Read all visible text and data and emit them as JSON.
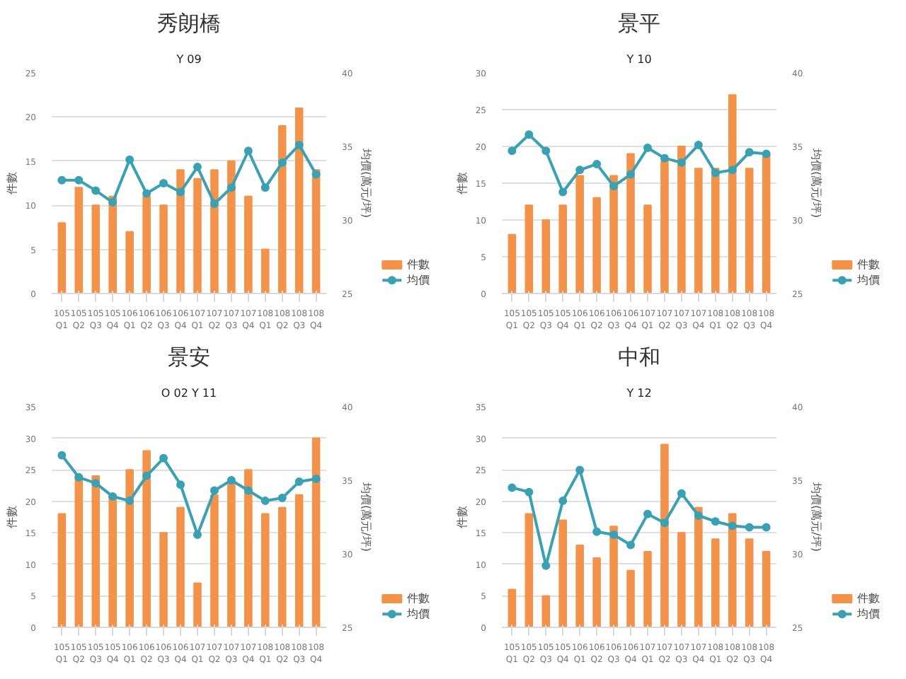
{
  "chart_data": [
    {
      "type": "bar",
      "title": "秀朗橋",
      "subtitle": "Y 09",
      "categories": [
        "105\nQ1",
        "105\nQ2",
        "105\nQ3",
        "105\nQ4",
        "106\nQ1",
        "106\nQ2",
        "106\nQ3",
        "106\nQ4",
        "107\nQ1",
        "107\nQ2",
        "107\nQ3",
        "107\nQ4",
        "108\nQ1",
        "108\nQ2",
        "108\nQ3",
        "108\nQ4"
      ],
      "ylabel": "件數",
      "y2label": "均價(萬元/坪)",
      "ylim": [
        0,
        25
      ],
      "yticks": [
        0,
        5,
        10,
        15,
        20,
        25
      ],
      "y2lim": [
        25,
        40
      ],
      "y2ticks": [
        25,
        30,
        35,
        40
      ],
      "grid": "y",
      "legend": "bottom right",
      "marker": "circle",
      "series": [
        {
          "name": "件數",
          "color": "#f4924a",
          "values": [
            8,
            12,
            10,
            11,
            7,
            11,
            10,
            14,
            13,
            14,
            15,
            11,
            5,
            19,
            21,
            14
          ]
        },
        {
          "name": "均價",
          "type": "line",
          "axis": "y2",
          "color": "#3aa1b4",
          "values": [
            32.7,
            32.7,
            32.0,
            31.2,
            34.1,
            31.8,
            32.5,
            31.9,
            33.6,
            31.1,
            32.2,
            34.7,
            32.2,
            33.9,
            35.1,
            33.1
          ]
        }
      ]
    },
    {
      "type": "bar",
      "title": "景平",
      "subtitle": "Y 10",
      "categories": [
        "105\nQ1",
        "105\nQ2",
        "105\nQ3",
        "105\nQ4",
        "106\nQ1",
        "106\nQ2",
        "106\nQ3",
        "106\nQ4",
        "107\nQ1",
        "107\nQ2",
        "107\nQ3",
        "107\nQ4",
        "108\nQ1",
        "108\nQ2",
        "108\nQ3",
        "108\nQ4"
      ],
      "ylabel": "件數",
      "y2label": "均價(萬元/坪)",
      "ylim": [
        0,
        30
      ],
      "yticks": [
        0,
        5,
        10,
        15,
        20,
        25,
        30
      ],
      "y2lim": [
        25,
        40
      ],
      "y2ticks": [
        25,
        30,
        35,
        40
      ],
      "grid": "y",
      "legend": "bottom right",
      "marker": "circle",
      "series": [
        {
          "name": "件數",
          "color": "#f4924a",
          "values": [
            8,
            12,
            10,
            12,
            16,
            13,
            16,
            19,
            12,
            18,
            20,
            17,
            17,
            27,
            17,
            19
          ]
        },
        {
          "name": "均價",
          "type": "line",
          "axis": "y2",
          "color": "#3aa1b4",
          "values": [
            34.7,
            35.8,
            34.7,
            31.9,
            33.4,
            33.8,
            32.3,
            33.1,
            34.9,
            34.2,
            33.9,
            35.1,
            33.2,
            33.4,
            34.6,
            34.5
          ]
        }
      ]
    },
    {
      "type": "bar",
      "title": "景安",
      "subtitle": "O 02 Y 11",
      "categories": [
        "105\nQ1",
        "105\nQ2",
        "105\nQ3",
        "105\nQ4",
        "106\nQ1",
        "106\nQ2",
        "106\nQ3",
        "106\nQ4",
        "107\nQ1",
        "107\nQ2",
        "107\nQ3",
        "107\nQ4",
        "108\nQ1",
        "108\nQ2",
        "108\nQ3",
        "108\nQ4"
      ],
      "ylabel": "件數",
      "y2label": "均價(萬元/坪)",
      "ylim": [
        0,
        35
      ],
      "yticks": [
        0,
        5,
        10,
        15,
        20,
        25,
        30,
        35
      ],
      "y2lim": [
        25,
        40
      ],
      "y2ticks": [
        25,
        30,
        35,
        40
      ],
      "grid": "y",
      "legend": "bottom right",
      "marker": "circle",
      "series": [
        {
          "name": "件數",
          "color": "#f4924a",
          "values": [
            18,
            24,
            24,
            21,
            25,
            28,
            15,
            19,
            7,
            21,
            23,
            25,
            18,
            19,
            21,
            30
          ]
        },
        {
          "name": "均價",
          "type": "line",
          "axis": "y2",
          "color": "#3aa1b4",
          "values": [
            36.7,
            35.2,
            34.8,
            33.9,
            33.6,
            35.3,
            36.5,
            34.7,
            31.3,
            34.3,
            35.0,
            34.3,
            33.6,
            33.8,
            34.9,
            35.1
          ]
        }
      ]
    },
    {
      "type": "bar",
      "title": "中和",
      "subtitle": "Y 12",
      "categories": [
        "105\nQ1",
        "105\nQ2",
        "105\nQ3",
        "105\nQ4",
        "106\nQ1",
        "106\nQ2",
        "106\nQ3",
        "106\nQ4",
        "107\nQ1",
        "107\nQ2",
        "107\nQ3",
        "107\nQ4",
        "108\nQ1",
        "108\nQ2",
        "108\nQ3",
        "108\nQ4"
      ],
      "ylabel": "件數",
      "y2label": "均價(萬元/坪)",
      "ylim": [
        0,
        35
      ],
      "yticks": [
        0,
        5,
        10,
        15,
        20,
        25,
        30,
        35
      ],
      "y2lim": [
        25,
        40
      ],
      "y2ticks": [
        25,
        30,
        35,
        40
      ],
      "grid": "y",
      "legend": "bottom right",
      "marker": "circle",
      "series": [
        {
          "name": "件數",
          "color": "#f4924a",
          "values": [
            6,
            18,
            5,
            17,
            13,
            11,
            16,
            9,
            12,
            29,
            15,
            19,
            14,
            18,
            14,
            12
          ]
        },
        {
          "name": "均價",
          "type": "line",
          "axis": "y2",
          "color": "#3aa1b4",
          "values": [
            34.5,
            34.2,
            29.2,
            33.6,
            35.7,
            31.5,
            31.3,
            30.6,
            32.7,
            32.1,
            34.1,
            32.6,
            32.2,
            31.9,
            31.8,
            31.8
          ]
        }
      ]
    }
  ]
}
